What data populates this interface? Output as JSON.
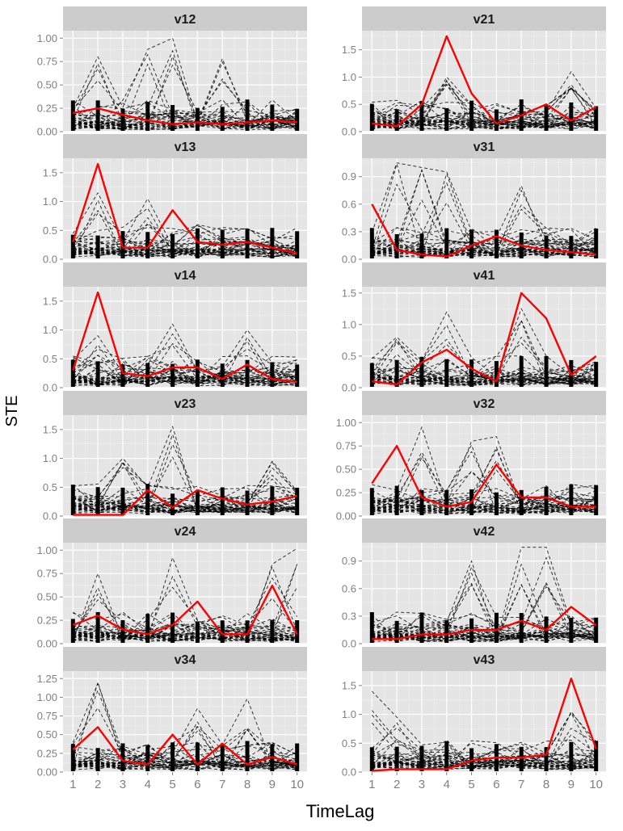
{
  "figure": {
    "xlabel": "TimeLag",
    "ylabel": "STE",
    "x_ticks": [
      1,
      2,
      3,
      4,
      5,
      6,
      7,
      8,
      9,
      10
    ],
    "colors": {
      "highlight": "#ff0000",
      "background_lines": "#000000",
      "panel_bg": "#e5e5e5",
      "strip_bg": "#cccccc",
      "grid": "#ffffff",
      "tick_label": "#7f7f7f"
    }
  },
  "chart_data": [
    {
      "type": "line",
      "title": "v12",
      "ylim": [
        0,
        1.08
      ],
      "y_ticks": [
        0,
        0.25,
        0.5,
        0.75,
        1.0
      ],
      "y_tick_labels": [
        "0.00",
        "0.25",
        "0.50",
        "0.75",
        "1.00"
      ],
      "x": [
        1,
        2,
        3,
        4,
        5,
        6,
        7,
        8,
        9,
        10
      ],
      "highlight": [
        0.2,
        0.25,
        0.18,
        0.12,
        0.08,
        0.1,
        0.08,
        0.1,
        0.12,
        0.1
      ],
      "peaks": [
        {
          "x": 4,
          "y": 0.88
        },
        {
          "x": 5,
          "y": 1.0
        },
        {
          "x": 7,
          "y": 0.78
        },
        {
          "x": 2,
          "y": 0.8
        }
      ]
    },
    {
      "type": "line",
      "title": "v21",
      "ylim": [
        0,
        1.85
      ],
      "y_ticks": [
        0,
        0.5,
        1.0,
        1.5
      ],
      "y_tick_labels": [
        "0.0",
        "0.5",
        "1.0",
        "1.5"
      ],
      "x": [
        1,
        2,
        3,
        4,
        5,
        6,
        7,
        8,
        9,
        10
      ],
      "highlight": [
        0.15,
        0.1,
        0.5,
        1.75,
        0.7,
        0.15,
        0.3,
        0.5,
        0.2,
        0.45
      ],
      "peaks": [
        {
          "x": 4,
          "y": 1.0
        },
        {
          "x": 9,
          "y": 1.1
        }
      ]
    },
    {
      "type": "line",
      "title": "v13",
      "ylim": [
        0,
        1.75
      ],
      "y_ticks": [
        0,
        0.5,
        1.0,
        1.5
      ],
      "y_tick_labels": [
        "0.0",
        "0.5",
        "1.0",
        "1.5"
      ],
      "x": [
        1,
        2,
        3,
        4,
        5,
        6,
        7,
        8,
        9,
        10
      ],
      "highlight": [
        0.3,
        1.65,
        0.2,
        0.2,
        0.85,
        0.3,
        0.25,
        0.3,
        0.2,
        0.1
      ],
      "peaks": [
        {
          "x": 2,
          "y": 1.15
        },
        {
          "x": 4,
          "y": 1.05
        },
        {
          "x": 6,
          "y": 0.6
        }
      ]
    },
    {
      "type": "line",
      "title": "v31",
      "ylim": [
        0,
        1.1
      ],
      "y_ticks": [
        0,
        0.3,
        0.6,
        0.9
      ],
      "y_tick_labels": [
        "0.0",
        "0.3",
        "0.6",
        "0.9"
      ],
      "x": [
        1,
        2,
        3,
        4,
        5,
        6,
        7,
        8,
        9,
        10
      ],
      "highlight": [
        0.6,
        0.1,
        0.05,
        0.03,
        0.15,
        0.25,
        0.15,
        0.1,
        0.08,
        0.05
      ],
      "peaks": [
        {
          "x": 2,
          "y": 1.05
        },
        {
          "x": 3,
          "y": 1.0
        },
        {
          "x": 4,
          "y": 0.95
        },
        {
          "x": 7,
          "y": 0.8
        }
      ]
    },
    {
      "type": "line",
      "title": "v14",
      "ylim": [
        0,
        1.75
      ],
      "y_ticks": [
        0,
        0.5,
        1.0,
        1.5
      ],
      "y_tick_labels": [
        "0.0",
        "0.5",
        "1.0",
        "1.5"
      ],
      "x": [
        1,
        2,
        3,
        4,
        5,
        6,
        7,
        8,
        9,
        10
      ],
      "highlight": [
        0.3,
        1.65,
        0.25,
        0.2,
        0.35,
        0.35,
        0.15,
        0.4,
        0.15,
        0.1
      ],
      "peaks": [
        {
          "x": 5,
          "y": 1.1
        },
        {
          "x": 8,
          "y": 1.0
        },
        {
          "x": 2,
          "y": 0.9
        }
      ]
    },
    {
      "type": "line",
      "title": "v41",
      "ylim": [
        0,
        1.6
      ],
      "y_ticks": [
        0,
        0.5,
        1.0,
        1.5
      ],
      "y_tick_labels": [
        "0.0",
        "0.5",
        "1.0",
        "1.5"
      ],
      "x": [
        1,
        2,
        3,
        4,
        5,
        6,
        7,
        8,
        9,
        10
      ],
      "highlight": [
        0.1,
        0.05,
        0.4,
        0.6,
        0.3,
        0.1,
        1.5,
        1.1,
        0.2,
        0.5
      ],
      "peaks": [
        {
          "x": 4,
          "y": 1.2
        },
        {
          "x": 7,
          "y": 1.25
        },
        {
          "x": 2,
          "y": 0.8
        }
      ]
    },
    {
      "type": "line",
      "title": "v23",
      "ylim": [
        0,
        1.75
      ],
      "y_ticks": [
        0,
        0.5,
        1.0,
        1.5
      ],
      "y_tick_labels": [
        "0.0",
        "0.5",
        "1.0",
        "1.5"
      ],
      "x": [
        1,
        2,
        3,
        4,
        5,
        6,
        7,
        8,
        9,
        10
      ],
      "highlight": [
        0.02,
        0.02,
        0.02,
        0.45,
        0.15,
        0.45,
        0.3,
        0.2,
        0.25,
        0.35
      ],
      "peaks": [
        {
          "x": 5,
          "y": 1.55
        },
        {
          "x": 3,
          "y": 1.0
        },
        {
          "x": 9,
          "y": 0.95
        }
      ]
    },
    {
      "type": "line",
      "title": "v32",
      "ylim": [
        0,
        1.08
      ],
      "y_ticks": [
        0,
        0.25,
        0.5,
        0.75,
        1.0
      ],
      "y_tick_labels": [
        "0.00",
        "0.25",
        "0.50",
        "0.75",
        "1.00"
      ],
      "x": [
        1,
        2,
        3,
        4,
        5,
        6,
        7,
        8,
        9,
        10
      ],
      "highlight": [
        0.35,
        0.75,
        0.2,
        0.1,
        0.15,
        0.55,
        0.2,
        0.2,
        0.1,
        0.1
      ],
      "peaks": [
        {
          "x": 3,
          "y": 0.95
        },
        {
          "x": 5,
          "y": 0.8
        },
        {
          "x": 6,
          "y": 0.85
        }
      ]
    },
    {
      "type": "line",
      "title": "v24",
      "ylim": [
        0,
        1.08
      ],
      "y_ticks": [
        0,
        0.25,
        0.5,
        0.75,
        1.0
      ],
      "y_tick_labels": [
        "0.00",
        "0.25",
        "0.50",
        "0.75",
        "1.00"
      ],
      "x": [
        1,
        2,
        3,
        4,
        5,
        6,
        7,
        8,
        9,
        10
      ],
      "highlight": [
        0.2,
        0.3,
        0.15,
        0.1,
        0.2,
        0.45,
        0.1,
        0.1,
        0.62,
        0.1
      ],
      "peaks": [
        {
          "x": 5,
          "y": 0.92
        },
        {
          "x": 9,
          "y": 0.85
        },
        {
          "x": 10,
          "y": 1.02
        },
        {
          "x": 2,
          "y": 0.75
        }
      ]
    },
    {
      "type": "line",
      "title": "v42",
      "ylim": [
        0,
        1.1
      ],
      "y_ticks": [
        0,
        0.3,
        0.6,
        0.9
      ],
      "y_tick_labels": [
        "0.0",
        "0.3",
        "0.6",
        "0.9"
      ],
      "x": [
        1,
        2,
        3,
        4,
        5,
        6,
        7,
        8,
        9,
        10
      ],
      "highlight": [
        0.05,
        0.05,
        0.1,
        0.1,
        0.15,
        0.15,
        0.25,
        0.15,
        0.4,
        0.2
      ],
      "peaks": [
        {
          "x": 7,
          "y": 1.05
        },
        {
          "x": 8,
          "y": 1.05
        },
        {
          "x": 5,
          "y": 0.9
        }
      ]
    },
    {
      "type": "line",
      "title": "v34",
      "ylim": [
        0,
        1.35
      ],
      "y_ticks": [
        0,
        0.25,
        0.5,
        0.75,
        1.0,
        1.25
      ],
      "y_tick_labels": [
        "0.00",
        "0.25",
        "0.50",
        "0.75",
        "1.00",
        "1.25"
      ],
      "x": [
        1,
        2,
        3,
        4,
        5,
        6,
        7,
        8,
        9,
        10
      ],
      "highlight": [
        0.3,
        0.6,
        0.15,
        0.1,
        0.5,
        0.1,
        0.38,
        0.1,
        0.2,
        0.1
      ],
      "peaks": [
        {
          "x": 2,
          "y": 1.2
        },
        {
          "x": 8,
          "y": 0.98
        },
        {
          "x": 6,
          "y": 0.85
        }
      ]
    },
    {
      "type": "line",
      "title": "v43",
      "ylim": [
        0,
        1.75
      ],
      "y_ticks": [
        0,
        0.5,
        1.0,
        1.5
      ],
      "y_tick_labels": [
        "0.0",
        "0.5",
        "1.0",
        "1.5"
      ],
      "x": [
        1,
        2,
        3,
        4,
        5,
        6,
        7,
        8,
        9,
        10
      ],
      "highlight": [
        0.02,
        0.05,
        0.05,
        0.05,
        0.2,
        0.25,
        0.25,
        0.3,
        1.62,
        0.4
      ],
      "peaks": [
        {
          "x": 1,
          "y": 1.4
        },
        {
          "x": 2,
          "y": 0.95
        },
        {
          "x": 9,
          "y": 1.05
        }
      ]
    }
  ]
}
